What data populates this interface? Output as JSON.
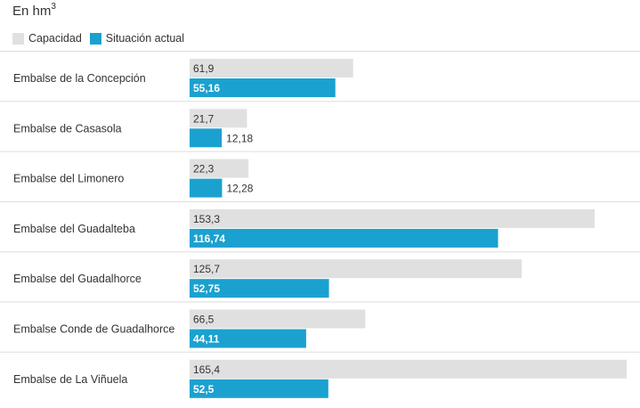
{
  "unit": {
    "text": "En hm",
    "superscript": "3"
  },
  "legend": [
    {
      "label": "Capacidad",
      "color": "#e0e0e0"
    },
    {
      "label": "Situación actual",
      "color": "#1ba1cf"
    }
  ],
  "colors": {
    "capacity": "#e0e0e0",
    "current": "#1ba1cf",
    "text": "#333333",
    "text_on_bar": "#ffffff",
    "separator": "#dddddd"
  },
  "chart_data": {
    "type": "bar",
    "orientation": "horizontal",
    "xlim": [
      0,
      165.4
    ],
    "categories": [
      "Embalse de la Concepción",
      "Embalse de Casasola",
      "Embalse del Limonero",
      "Embalse del Guadalteba",
      "Embalse del Guadalhorce",
      "Embalse Conde de Guadalhorce",
      "Embalse de La Viñuela"
    ],
    "series": [
      {
        "name": "Capacidad",
        "values": [
          61.9,
          21.7,
          22.3,
          153.3,
          125.7,
          66.5,
          165.4
        ],
        "labels": [
          "61,9",
          "21,7",
          "22,3",
          "153,3",
          "125,7",
          "66,5",
          "165,4"
        ]
      },
      {
        "name": "Situación actual",
        "values": [
          55.16,
          12.18,
          12.28,
          116.74,
          52.75,
          44.11,
          52.5
        ],
        "labels": [
          "55,16",
          "12,18",
          "12,28",
          "116,74",
          "52,75",
          "44,11",
          "52,5"
        ]
      }
    ]
  }
}
